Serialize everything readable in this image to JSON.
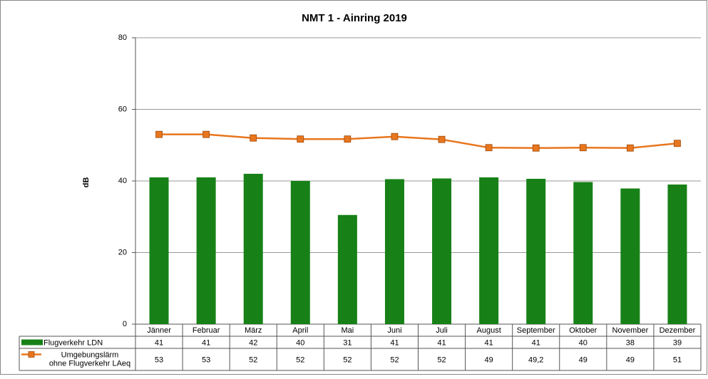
{
  "chart_data": {
    "type": "bar",
    "title": "NMT 1 - Ainring 2019",
    "y_label": "dB",
    "categories": [
      "Jänner",
      "Februar",
      "März",
      "April",
      "Mai",
      "Juni",
      "Juli",
      "August",
      "September",
      "Oktober",
      "November",
      "Dezember"
    ],
    "series": [
      {
        "name": "Flugverkehr LDN",
        "type": "bar",
        "color": "#178117",
        "values": [
          41,
          41,
          42,
          40,
          30.5,
          40.5,
          40.7,
          41,
          40.6,
          39.7,
          37.9,
          39
        ],
        "value_labels": [
          "41",
          "41",
          "42",
          "40",
          "31",
          "41",
          "41",
          "41",
          "41",
          "40",
          "38",
          "39"
        ]
      },
      {
        "name": "Umgebungslärm\nohne Flugverkehr LAeq",
        "type": "line",
        "color": "#e8761e",
        "values": [
          53,
          53,
          52,
          51.7,
          51.7,
          52.4,
          51.6,
          49.3,
          49.2,
          49.3,
          49.2,
          50.5
        ],
        "value_labels": [
          "53",
          "53",
          "52",
          "52",
          "52",
          "52",
          "52",
          "49",
          "49,2",
          "49",
          "49",
          "51"
        ]
      }
    ],
    "ylim": [
      0,
      80
    ],
    "yticks": [
      0,
      20,
      40,
      60,
      80
    ],
    "grid": true
  }
}
